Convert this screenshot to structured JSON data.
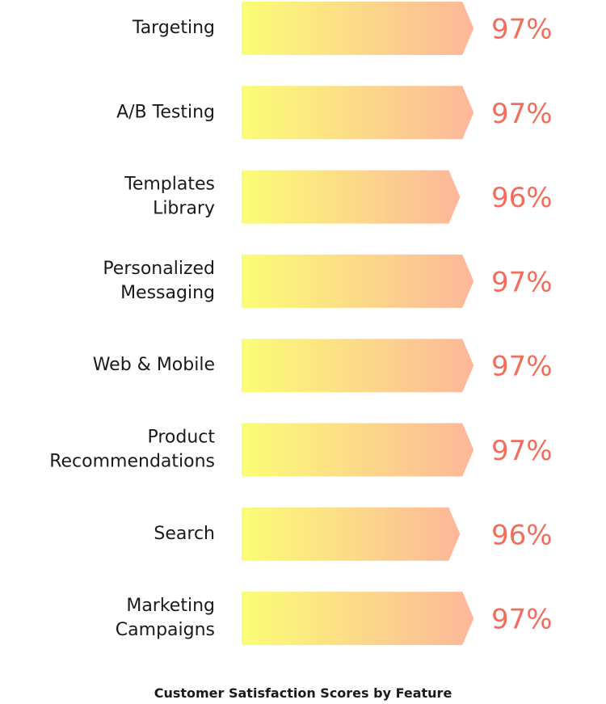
{
  "chart_data": {
    "type": "bar",
    "orientation": "horizontal",
    "title": "Customer Satisfaction Scores by Feature",
    "categories": [
      [
        "Targeting"
      ],
      [
        "A/B Testing"
      ],
      [
        "Templates",
        "Library"
      ],
      [
        "Personalized",
        "Messaging"
      ],
      [
        "Web & Mobile"
      ],
      [
        "Product",
        "Recommendations"
      ],
      [
        "Search"
      ],
      [
        "Marketing",
        "Campaigns"
      ]
    ],
    "values": [
      97,
      97,
      96,
      97,
      97,
      97,
      96,
      97
    ],
    "value_labels": [
      "97%",
      "97%",
      "96%",
      "97%",
      "97%",
      "97%",
      "96%",
      "97%"
    ],
    "unit": "%",
    "colors": {
      "bar_gradient_start": "#fbfd76",
      "bar_gradient_end": "#fdb79a",
      "value_text": "#f26d5b",
      "category_text": "#1a1a1a"
    }
  }
}
